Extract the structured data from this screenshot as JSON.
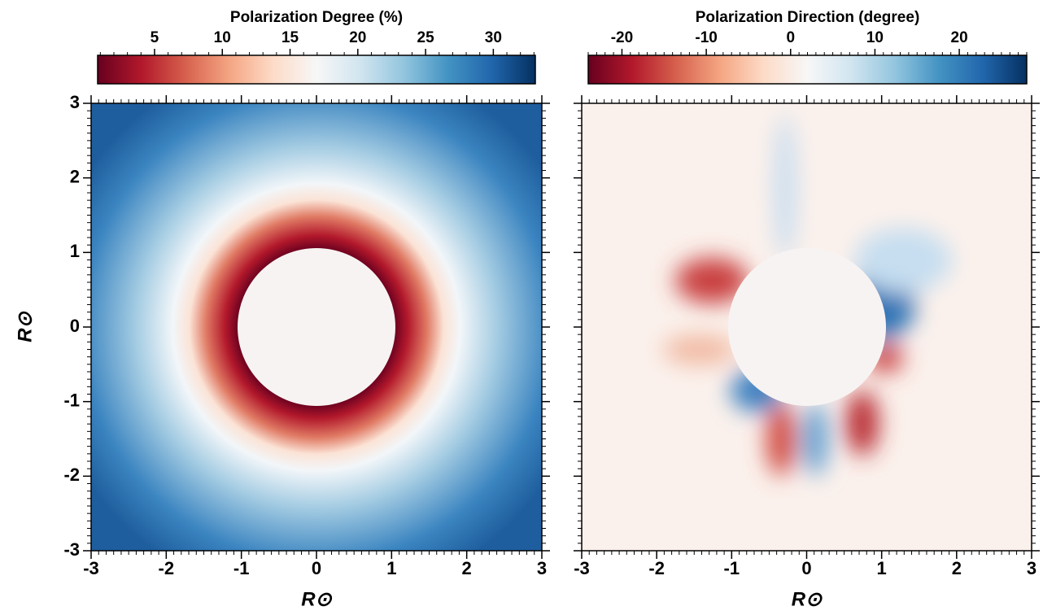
{
  "chart_data": [
    {
      "type": "heatmap",
      "colorbar_label": "Polarization Degree (%)",
      "colorbar_lim": [
        0.8,
        33.1
      ],
      "colorbar_ticks": [
        5,
        10,
        15,
        20,
        25,
        30
      ],
      "colorbar_minor_step": 1,
      "colormap": [
        "#67001f",
        "#b2182b",
        "#d6604d",
        "#f4a582",
        "#fddbc7",
        "#f7f7f7",
        "#d1e5f0",
        "#92c5de",
        "#4393c3",
        "#2166ac",
        "#053061"
      ],
      "xlim": [
        -3,
        3
      ],
      "ylim": [
        -3,
        3
      ],
      "xticks": [
        -3,
        -2,
        -1,
        0,
        1,
        2,
        3
      ],
      "yticks": [
        -3,
        -2,
        -1,
        0,
        1,
        2,
        3
      ],
      "minor_tick_step": 0.1,
      "show_ytick_labels": true,
      "xlabel": "R⊙",
      "ylabel": "R⊙"
    },
    {
      "type": "heatmap",
      "colorbar_label": "Polarization Direction (degree)",
      "colorbar_lim": [
        -24,
        28
      ],
      "colorbar_ticks": [
        -20,
        -10,
        0,
        10,
        20
      ],
      "colorbar_minor_step": 1,
      "colormap": [
        "#67001f",
        "#b2182b",
        "#d6604d",
        "#f4a582",
        "#fddbc7",
        "#f7f7f7",
        "#d1e5f0",
        "#92c5de",
        "#4393c3",
        "#2166ac",
        "#053061"
      ],
      "xlim": [
        -3,
        3
      ],
      "ylim": [
        -3,
        3
      ],
      "xticks": [
        -3,
        -2,
        -1,
        0,
        1,
        2,
        3
      ],
      "yticks": [
        -3,
        -2,
        -1,
        0,
        1,
        2,
        3
      ],
      "minor_tick_step": 0.1,
      "show_ytick_labels": false,
      "xlabel": "R⊙"
    }
  ]
}
